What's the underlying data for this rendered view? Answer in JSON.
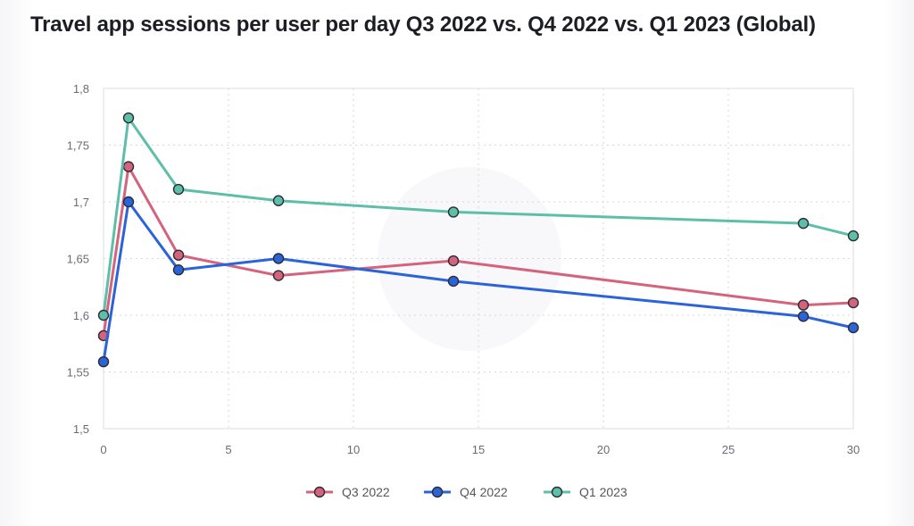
{
  "title": "Travel app sessions per user per day Q3 2022 vs. Q4 2022 vs. Q1 2023 (Global)",
  "chart_data": {
    "type": "line",
    "title": "Travel app sessions per user per day Q3 2022 vs. Q4 2022 vs. Q1 2023 (Global)",
    "xlabel": "",
    "ylabel": "",
    "xlim": [
      0,
      30
    ],
    "ylim": [
      1.5,
      1.8
    ],
    "x_ticks": [
      0,
      5,
      10,
      15,
      20,
      25,
      30
    ],
    "x_tick_labels": [
      "0",
      "5",
      "10",
      "15",
      "20",
      "25",
      "30"
    ],
    "y_ticks": [
      1.5,
      1.55,
      1.6,
      1.65,
      1.7,
      1.75,
      1.8
    ],
    "y_tick_labels": [
      "1,5",
      "1,55",
      "1,6",
      "1,65",
      "1,7",
      "1,75",
      "1,8"
    ],
    "grid": true,
    "legend_position": "bottom",
    "x": [
      0,
      1,
      3,
      7,
      14,
      28,
      30
    ],
    "series": [
      {
        "name": "Q3 2022",
        "color": "#d4637e",
        "values": [
          1.582,
          1.731,
          1.653,
          1.635,
          1.648,
          1.609,
          1.611
        ]
      },
      {
        "name": "Q4 2022",
        "color": "#2b63d9",
        "values": [
          1.559,
          1.7,
          1.64,
          1.65,
          1.63,
          1.599,
          1.589
        ]
      },
      {
        "name": "Q1 2023",
        "color": "#5dbfa7",
        "values": [
          1.6,
          1.774,
          1.711,
          1.701,
          1.691,
          1.681,
          1.67
        ]
      }
    ]
  }
}
